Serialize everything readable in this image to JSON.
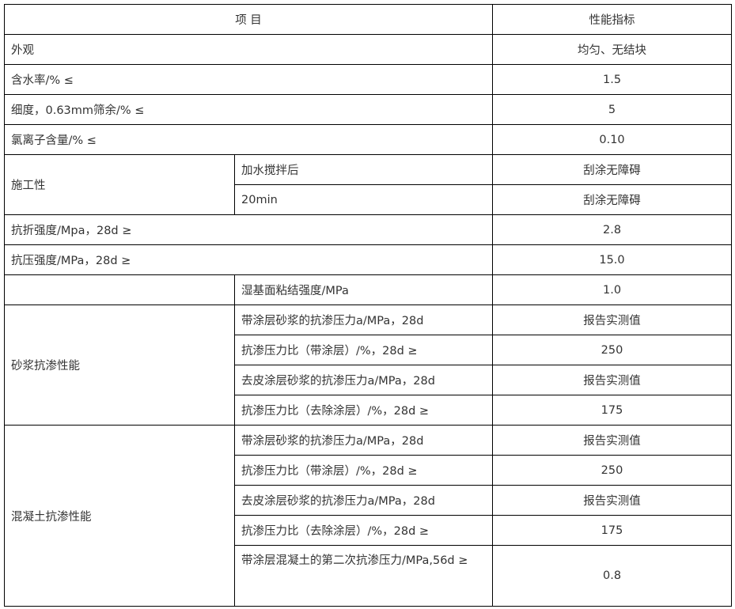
{
  "header": {
    "item": "项 目",
    "spec": "性能指标"
  },
  "rows": {
    "appearance": {
      "label": "外观",
      "value": "均匀、无结块"
    },
    "moisture": {
      "label": "含水率/%  ≤",
      "value": "1.5"
    },
    "fineness": {
      "label": "细度，0.63mm筛余/%  ≤",
      "value": "5"
    },
    "chloride": {
      "label": "氯离子含量/%  ≤",
      "value": "0.10"
    },
    "workability": {
      "label": "施工性",
      "items": [
        {
          "label": "加水搅拌后",
          "value": "刮涂无障碍"
        },
        {
          "label": "20min",
          "value": "刮涂无障碍"
        }
      ]
    },
    "flexural": {
      "label": "抗折强度/Mpa，28d ≥",
      "value": "2.8"
    },
    "compressive": {
      "label": "抗压强度/MPa，28d ≥",
      "value": "15.0"
    },
    "wet_bond": {
      "label": "湿基面粘结强度/MPa",
      "value": "1.0"
    },
    "mortar": {
      "label": "砂浆抗渗性能",
      "items": [
        {
          "label": "带涂层砂浆的抗渗压力a/MPa，28d",
          "value": "报告实测值"
        },
        {
          "label": "抗渗压力比（带涂层）/%，28d  ≥",
          "value": "250"
        },
        {
          "label": "去皮涂层砂浆的抗渗压力a/MPa，28d",
          "value": "报告实测值"
        },
        {
          "label": "抗渗压力比（去除涂层）/%，28d  ≥",
          "value": "175"
        }
      ]
    },
    "concrete": {
      "label": "混凝土抗渗性能",
      "items": [
        {
          "label": "带涂层砂浆的抗渗压力a/MPa，28d",
          "value": "报告实测值"
        },
        {
          "label": "抗渗压力比（带涂层）/%，28d  ≥",
          "value": "250"
        },
        {
          "label": "去皮涂层砂浆的抗渗压力a/MPa，28d",
          "value": "报告实测值"
        },
        {
          "label": "抗渗压力比（去除涂层）/%，28d  ≥",
          "value": "175"
        },
        {
          "label": "带涂层混凝土的第二次抗渗压力/MPa,56d ≥",
          "value": "0.8"
        }
      ]
    }
  }
}
